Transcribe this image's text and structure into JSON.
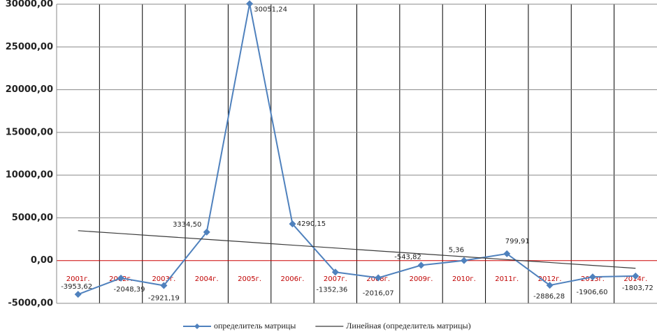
{
  "chart_data": {
    "type": "line",
    "categories": [
      "2001г.",
      "2002г.",
      "2003г.",
      "2004г.",
      "2005г.",
      "2006г.",
      "2007г.",
      "2008г.",
      "2009г.",
      "2010г.",
      "2011г.",
      "2012г.",
      "2013г.",
      "2014г."
    ],
    "series": [
      {
        "name": "определитель матрицы",
        "color": "#4f81bd",
        "values": [
          -3953.62,
          -2048.39,
          -2921.19,
          3334.5,
          30051.24,
          4290.15,
          -1352.36,
          -2016.07,
          -543.82,
          5.36,
          799.91,
          -2886.28,
          -1906.6,
          -1803.72
        ],
        "value_labels": [
          "-3953,62",
          "-2048,39",
          "-2921,19",
          "3334,50",
          "30051,24",
          "4290,15",
          "-1352,36",
          "-2016,07",
          "-543,82",
          "5,36",
          "799,91",
          "-2886,28",
          "-1906,60",
          "-1803,72"
        ]
      },
      {
        "name": "Линейная (определитель матрицы)",
        "color": "#3a3a3a",
        "values": [
          3500,
          3162,
          2823,
          2485,
          2146,
          1808,
          1469,
          1131,
          792,
          454,
          115,
          -223,
          -562,
          -900
        ]
      }
    ],
    "ylim": [
      -5000,
      30000
    ],
    "yticks": [
      {
        "value": -5000,
        "label": "-5000,00"
      },
      {
        "value": 0,
        "label": "0,00"
      },
      {
        "value": 5000,
        "label": "5000,00"
      },
      {
        "value": 10000,
        "label": "10000,00"
      },
      {
        "value": 15000,
        "label": "15000,00"
      },
      {
        "value": 20000,
        "label": "20000,00"
      },
      {
        "value": 25000,
        "label": "25000,00"
      },
      {
        "value": 30000,
        "label": "30000,00"
      }
    ],
    "grid": true,
    "legend": "bottom",
    "zero_line_color": "#cc0000",
    "category_label_color": "#c00000"
  }
}
